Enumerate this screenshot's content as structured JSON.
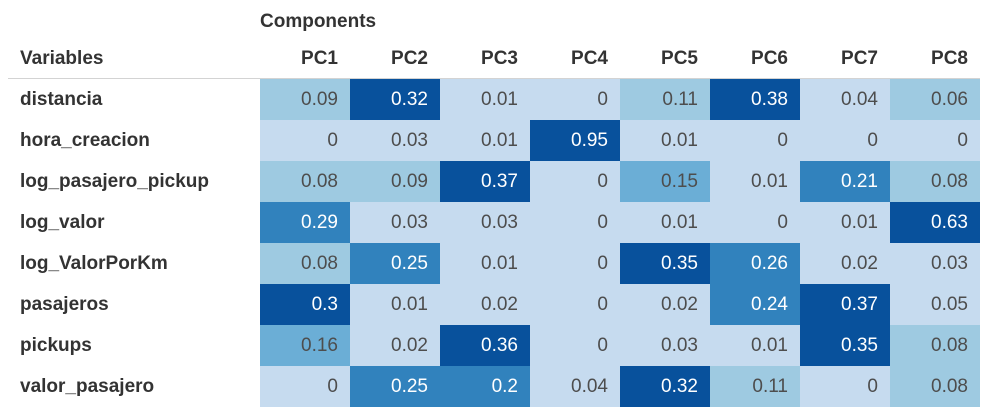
{
  "chart_data": {
    "type": "heatmap",
    "spanner_label": "Components",
    "row_header": "Variables",
    "columns": [
      "PC1",
      "PC2",
      "PC3",
      "PC4",
      "PC5",
      "PC6",
      "PC7",
      "PC8"
    ],
    "rows": [
      {
        "name": "distancia",
        "values": [
          0.09,
          0.32,
          0.01,
          0,
          0.11,
          0.38,
          0.04,
          0.06
        ]
      },
      {
        "name": "hora_creacion",
        "values": [
          0,
          0.03,
          0.01,
          0.95,
          0.01,
          0,
          0,
          0
        ]
      },
      {
        "name": "log_pasajero_pickup",
        "values": [
          0.08,
          0.09,
          0.37,
          0,
          0.15,
          0.01,
          0.21,
          0.08
        ]
      },
      {
        "name": "log_valor",
        "values": [
          0.29,
          0.03,
          0.03,
          0,
          0.01,
          0,
          0.01,
          0.63
        ]
      },
      {
        "name": "log_ValorPorKm",
        "values": [
          0.08,
          0.25,
          0.01,
          0,
          0.35,
          0.26,
          0.02,
          0.03
        ]
      },
      {
        "name": "pasajeros",
        "values": [
          0.3,
          0.01,
          0.02,
          0,
          0.02,
          0.24,
          0.37,
          0.05
        ]
      },
      {
        "name": "pickups",
        "values": [
          0.16,
          0.02,
          0.36,
          0,
          0.03,
          0.01,
          0.35,
          0.08
        ]
      },
      {
        "name": "valor_pasajero",
        "values": [
          0,
          0.25,
          0.2,
          0.04,
          0.32,
          0.11,
          0,
          0.08
        ]
      }
    ],
    "colors": {
      "very_low": "#c6dbef",
      "low": "#9ecae1",
      "mid": "#6baed6",
      "high": "#3182bd",
      "very_high": "#08519c",
      "dark_text": "#4d4d4d",
      "light_text": "#ffffff"
    }
  }
}
